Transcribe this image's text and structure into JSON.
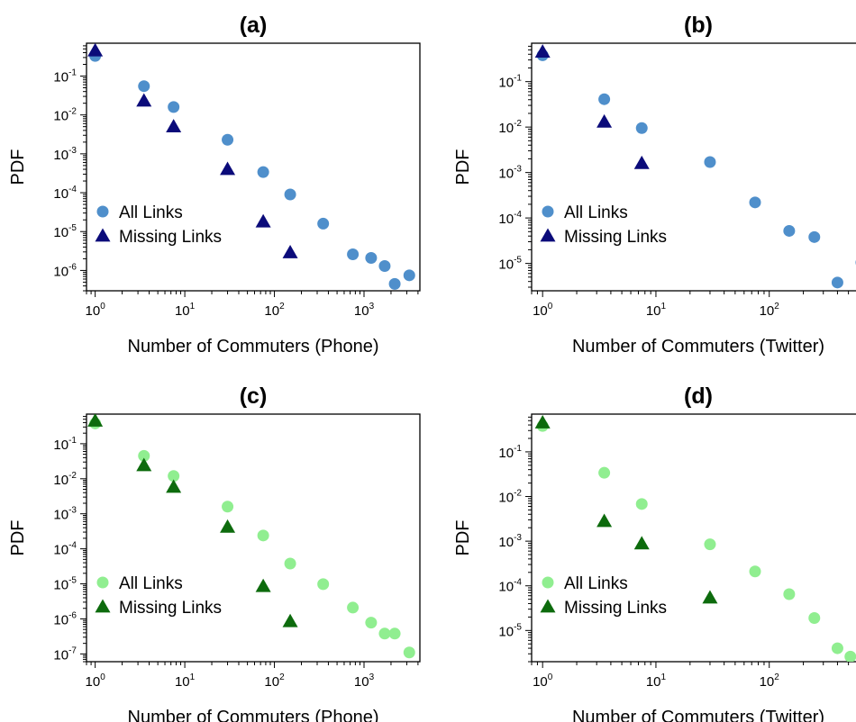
{
  "colors": {
    "all_phone": "#4f8fcb",
    "missing_phone": "#0b0b7a",
    "all_twitter_green": "#90ee90",
    "missing_green": "#0d6b0d"
  },
  "chart_data": [
    {
      "type": "scatter",
      "title": "(a)",
      "xlabel": "Number of Commuters (Phone)",
      "ylabel": "PDF",
      "xscale": "log",
      "yscale": "log",
      "xlim": [
        0.8,
        4200
      ],
      "ylim": [
        3e-07,
        0.7
      ],
      "xticks": [
        1,
        10,
        100,
        1000
      ],
      "yticks": [
        1e-06,
        1e-05,
        0.0001,
        0.001,
        0.01,
        0.1
      ],
      "legend": "bottom-left",
      "series": [
        {
          "name": "All Links",
          "marker": "circle",
          "color": "#4f8fcb",
          "points": [
            [
              1,
              0.33
            ],
            [
              3.5,
              0.055
            ],
            [
              7.5,
              0.016
            ],
            [
              30,
              0.0023
            ],
            [
              75,
              0.00034
            ],
            [
              150,
              9e-05
            ],
            [
              350,
              1.6e-05
            ],
            [
              750,
              2.6e-06
            ],
            [
              1200,
              2.1e-06
            ],
            [
              1700,
              1.3e-06
            ],
            [
              2200,
              4.5e-07
            ],
            [
              3200,
              7.5e-07
            ]
          ]
        },
        {
          "name": "Missing Links",
          "marker": "triangle",
          "color": "#0b0b7a",
          "points": [
            [
              1,
              0.45
            ],
            [
              3.5,
              0.023
            ],
            [
              7.5,
              0.005
            ],
            [
              30,
              0.0004
            ],
            [
              75,
              1.8e-05
            ],
            [
              150,
              2.9e-06
            ]
          ]
        }
      ]
    },
    {
      "type": "scatter",
      "title": "(b)",
      "xlabel": "Number of Commuters (Twitter)",
      "ylabel": "PDF",
      "xscale": "log",
      "yscale": "log",
      "xlim": [
        0.8,
        700
      ],
      "ylim": [
        2.5e-06,
        0.7
      ],
      "xticks": [
        1,
        10,
        100
      ],
      "yticks": [
        1e-05,
        0.0001,
        0.001,
        0.01,
        0.1
      ],
      "legend": "bottom-left",
      "series": [
        {
          "name": "All Links",
          "marker": "circle",
          "color": "#4f8fcb",
          "points": [
            [
              1,
              0.38
            ],
            [
              3.5,
              0.041
            ],
            [
              7.5,
              0.0095
            ],
            [
              30,
              0.0017
            ],
            [
              75,
              0.00022
            ],
            [
              150,
              5.2e-05
            ],
            [
              250,
              3.8e-05
            ],
            [
              400,
              3.8e-06
            ],
            [
              650,
              1.05e-05
            ]
          ]
        },
        {
          "name": "Missing Links",
          "marker": "triangle",
          "color": "#0b0b7a",
          "points": [
            [
              1,
              0.45
            ],
            [
              3.5,
              0.013
            ],
            [
              7.5,
              0.0016
            ]
          ]
        }
      ]
    },
    {
      "type": "scatter",
      "title": "(c)",
      "xlabel": "Number of Commuters (Phone)",
      "ylabel": "PDF",
      "xscale": "log",
      "yscale": "log",
      "xlim": [
        0.8,
        4200
      ],
      "ylim": [
        6e-08,
        0.7
      ],
      "xticks": [
        1,
        10,
        100,
        1000
      ],
      "yticks": [
        1e-07,
        1e-06,
        1e-05,
        0.0001,
        0.001,
        0.01,
        0.1
      ],
      "legend": "bottom-left",
      "series": [
        {
          "name": "All Links",
          "marker": "circle",
          "color": "#90ee90",
          "points": [
            [
              1,
              0.38
            ],
            [
              3.5,
              0.045
            ],
            [
              7.5,
              0.012
            ],
            [
              30,
              0.0016
            ],
            [
              75,
              0.00024
            ],
            [
              150,
              3.8e-05
            ],
            [
              350,
              9.8e-06
            ],
            [
              750,
              2.1e-06
            ],
            [
              1200,
              7.8e-07
            ],
            [
              1700,
              3.8e-07
            ],
            [
              2200,
              3.8e-07
            ],
            [
              3200,
              1.1e-07
            ]
          ]
        },
        {
          "name": "Missing Links",
          "marker": "triangle",
          "color": "#0d6b0d",
          "points": [
            [
              1,
              0.45
            ],
            [
              3.5,
              0.024
            ],
            [
              7.5,
              0.0058
            ],
            [
              30,
              0.00042
            ],
            [
              75,
              8.5e-06
            ],
            [
              150,
              8.5e-07
            ]
          ]
        }
      ]
    },
    {
      "type": "scatter",
      "title": "(d)",
      "xlabel": "Number of Commuters (Twitter)",
      "ylabel": "PDF",
      "xscale": "log",
      "yscale": "log",
      "xlim": [
        0.8,
        700
      ],
      "ylim": [
        2e-06,
        0.7
      ],
      "xticks": [
        1,
        10,
        100
      ],
      "yticks": [
        1e-05,
        0.0001,
        0.001,
        0.01,
        0.1
      ],
      "legend": "bottom-left",
      "series": [
        {
          "name": "All Links",
          "marker": "circle",
          "color": "#90ee90",
          "points": [
            [
              1,
              0.38
            ],
            [
              3.5,
              0.034
            ],
            [
              7.5,
              0.0068
            ],
            [
              30,
              0.00085
            ],
            [
              75,
              0.00021
            ],
            [
              150,
              6.5e-05
            ],
            [
              250,
              1.9e-05
            ],
            [
              400,
              4e-06
            ],
            [
              520,
              2.6e-06
            ]
          ]
        },
        {
          "name": "Missing Links",
          "marker": "triangle",
          "color": "#0d6b0d",
          "points": [
            [
              1,
              0.45
            ],
            [
              3.5,
              0.0028
            ],
            [
              7.5,
              0.00088
            ],
            [
              30,
              5.4e-05
            ]
          ]
        }
      ]
    }
  ]
}
